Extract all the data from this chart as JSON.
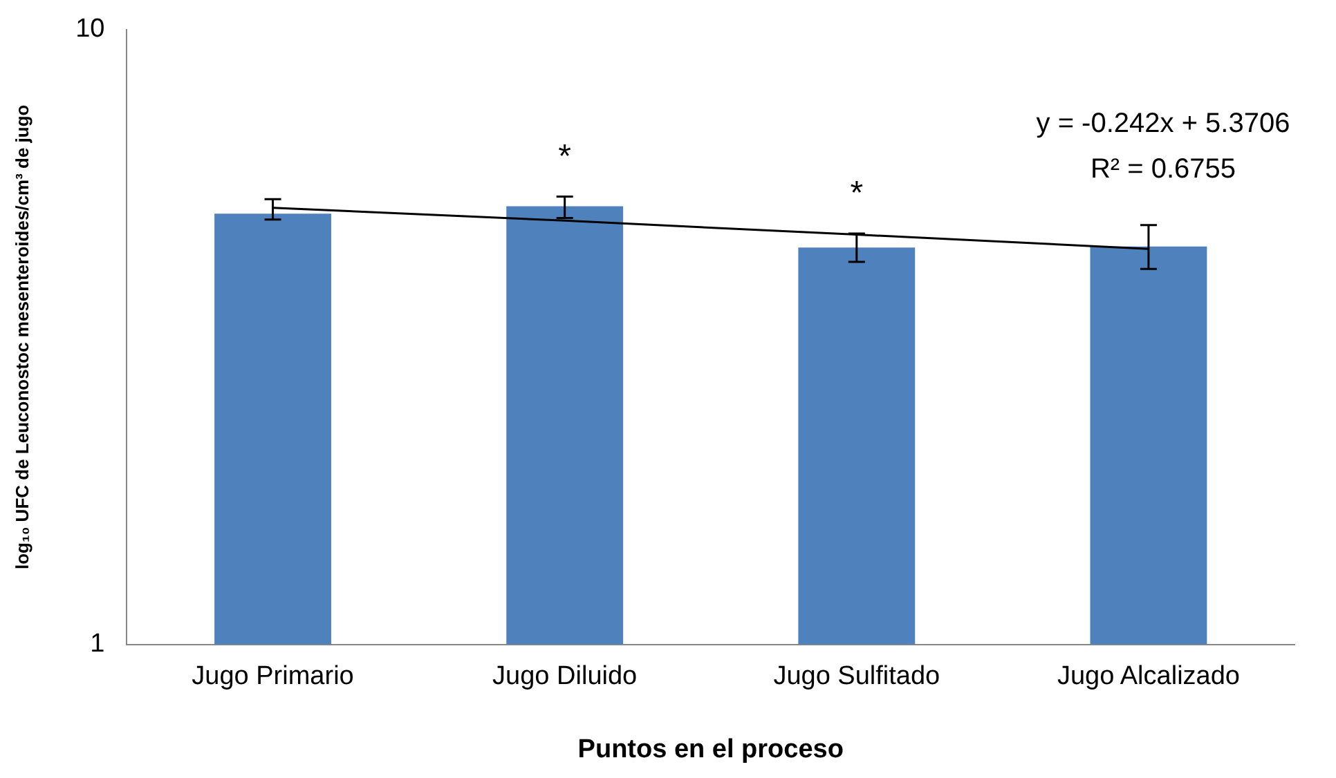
{
  "chart_data": {
    "type": "bar",
    "xlabel": "Puntos en el proceso",
    "ylabel": "log₁₀ UFC de Leuconostoc mesenteroides/cm³ de jugo",
    "categories": [
      "Jugo Primario",
      "Jugo Diluido",
      "Jugo Sulfitado",
      "Jugo Alcalizado"
    ],
    "series": [
      {
        "color": "#4f81bd",
        "values": [
          5.02,
          5.16,
          4.42,
          4.44
        ],
        "errors": [
          [
            4.91,
            5.3
          ],
          [
            4.94,
            5.35
          ],
          [
            4.19,
            4.66
          ],
          [
            4.08,
            4.81
          ]
        ]
      },
      {
        "type": "line",
        "color": "#000000",
        "values": [
          5.13,
          4.89,
          4.64,
          4.4
        ]
      }
    ],
    "ylim": [
      1,
      10
    ],
    "yticks": [
      1,
      10
    ],
    "log": true,
    "grid": false,
    "legend": false,
    "marker": "none",
    "annotations": [
      {
        "text": "*",
        "x": "Jugo Diluido",
        "y": 5.35
      },
      {
        "text": "*",
        "x": "Jugo Sulfitado",
        "y": 4.66
      },
      "y = -0.242x + 5.3706",
      "R² = 0.6755"
    ]
  }
}
